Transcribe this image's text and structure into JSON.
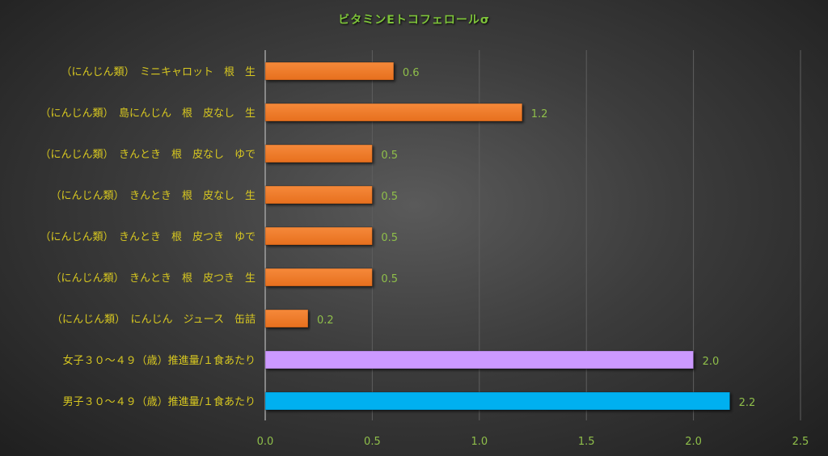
{
  "chart_data": {
    "type": "bar",
    "orientation": "horizontal",
    "title": "ビタミンEトコフェロールσ",
    "categories": [
      "（にんじん類）　ミニキャロット　根　生",
      "（にんじん類）　島にんじん　根　皮なし　生",
      "（にんじん類）　きんとき　根　皮なし　ゆで",
      "（にんじん類）　きんとき　根　皮なし　生",
      "（にんじん類）　きんとき　根　皮つき　ゆで",
      "（にんじん類）　きんとき　根　皮つき　生",
      "（にんじん類）　にんじん　ジュース　缶詰",
      "女子３０～４９（歳）推進量/１食あたり",
      "男子３０～４９（歳）推進量/１食あたり"
    ],
    "values": [
      0.6,
      1.2,
      0.5,
      0.5,
      0.5,
      0.5,
      0.2,
      2.0,
      2.17
    ],
    "data_labels": [
      "0.6",
      "1.2",
      "0.5",
      "0.5",
      "0.5",
      "0.5",
      "0.2",
      "2.0",
      "2.2"
    ],
    "bar_colors": [
      "#f07b2a",
      "#f07b2a",
      "#f07b2a",
      "#f07b2a",
      "#f07b2a",
      "#f07b2a",
      "#f07b2a",
      "#cc99ff",
      "#00b0f0"
    ],
    "xlim": [
      0,
      2.5
    ],
    "x_ticks": [
      "0.0",
      "0.5",
      "1.0",
      "1.5",
      "2.0",
      "2.5"
    ],
    "grid": "vertical",
    "legend": "none",
    "colors": {
      "category_label": "#d8c820",
      "value_label": "#8fbf4a",
      "title": "#7ec43a"
    }
  }
}
